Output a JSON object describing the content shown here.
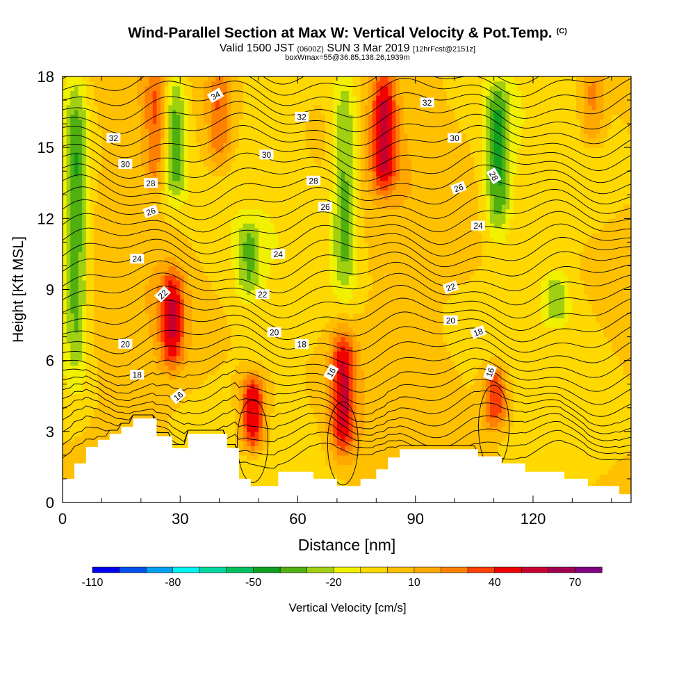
{
  "header": {
    "title": "Wind-Parallel Section at Max W: Vertical Velocity & Pot.Temp.",
    "copyright": "(C)",
    "valid_a": "Valid 1500 JST",
    "valid_z": "(0600Z)",
    "valid_b": "SUN 3 Mar 2019",
    "valid_fcst": "[12hrFcst@2151z]",
    "subtitle": "boxWmax=55@36.85,138.26,1939m"
  },
  "chart_data": {
    "type": "heatmap",
    "xlabel": "Distance [nm]",
    "ylabel": "Height [Kft MSL]",
    "xlim": [
      0,
      145
    ],
    "ylim": [
      0,
      18
    ],
    "x_ticks": [
      0,
      30,
      60,
      90,
      120
    ],
    "y_ticks": [
      0,
      3,
      6,
      9,
      12,
      15,
      18
    ],
    "colorbar": {
      "label": "Vertical Velocity [cm/s]",
      "tick_labels": [
        -110,
        -80,
        -50,
        -20,
        10,
        40,
        70
      ],
      "bounds": [
        -110,
        -100,
        -90,
        -80,
        -70,
        -60,
        -50,
        -40,
        -30,
        -20,
        -10,
        0,
        10,
        20,
        30,
        40,
        50,
        60,
        70,
        80
      ],
      "colors": [
        "#0000f0",
        "#0050f0",
        "#00a0f0",
        "#00f0f0",
        "#00d8a0",
        "#00c060",
        "#10a020",
        "#50b010",
        "#a0d010",
        "#f0f000",
        "#ffd800",
        "#ffc000",
        "#ffa800",
        "#ff8000",
        "#ff4000",
        "#f00000",
        "#c80030",
        "#a00050",
        "#800080"
      ]
    },
    "field": {
      "background_wcms": 0,
      "features": [
        {
          "type": "updraft",
          "x": 24,
          "y_range": [
            13,
            18.5
          ],
          "w_max": 30
        },
        {
          "type": "downdraft",
          "x": 28.5,
          "y_range": [
            12.5,
            18.5
          ],
          "w_min": -40
        },
        {
          "type": "updraft",
          "x": 40,
          "y_range": [
            14,
            18.5
          ],
          "w_max": 30
        },
        {
          "type": "updraft",
          "x": 28,
          "y_range": [
            5.5,
            10
          ],
          "w_max": 45
        },
        {
          "type": "downdraft",
          "x": 3.5,
          "y_range": [
            5,
            18.5
          ],
          "w_min": -40
        },
        {
          "type": "downdraft",
          "x": 47.5,
          "y_range": [
            8.5,
            12
          ],
          "w_min": -25
        },
        {
          "type": "updraft",
          "x": 48.5,
          "y_range": [
            2,
            5.5
          ],
          "w_max": 55
        },
        {
          "type": "updraft",
          "x": 71.5,
          "y_range": [
            1.8,
            7.5
          ],
          "w_max": 50
        },
        {
          "type": "downdraft",
          "x": 72,
          "y_range": [
            8.5,
            18.5
          ],
          "w_min": -35
        },
        {
          "type": "updraft",
          "x": 82,
          "y_range": [
            13,
            18.5
          ],
          "w_max": 50
        },
        {
          "type": "updraft",
          "x": 110.5,
          "y_range": [
            3,
            6
          ],
          "w_max": 40
        },
        {
          "type": "downdraft",
          "x": 111,
          "y_range": [
            11,
            18
          ],
          "w_min": -40
        },
        {
          "type": "downdraft",
          "x": 126,
          "y_range": [
            7.5,
            9.8
          ],
          "w_min": -25
        },
        {
          "type": "updraft",
          "x": 135,
          "y_range": [
            15,
            18.5
          ],
          "w_max": 25
        }
      ]
    },
    "terrain_kft": [
      [
        0,
        1.0
      ],
      [
        3,
        1.0
      ],
      [
        3,
        1.65
      ],
      [
        6,
        1.65
      ],
      [
        6,
        2.35
      ],
      [
        9,
        2.35
      ],
      [
        9,
        2.65
      ],
      [
        12,
        2.65
      ],
      [
        12,
        2.9
      ],
      [
        15,
        2.9
      ],
      [
        15,
        3.2
      ],
      [
        18,
        3.2
      ],
      [
        18,
        3.55
      ],
      [
        24,
        3.55
      ],
      [
        24,
        2.8
      ],
      [
        28,
        2.8
      ],
      [
        28,
        2.3
      ],
      [
        32,
        2.3
      ],
      [
        32,
        2.9
      ],
      [
        42,
        2.9
      ],
      [
        42,
        2.3
      ],
      [
        45,
        2.3
      ],
      [
        45,
        1.0
      ],
      [
        48,
        1.0
      ],
      [
        48,
        0.7
      ],
      [
        52,
        0.7
      ],
      [
        52,
        0.7
      ],
      [
        55,
        0.7
      ],
      [
        55,
        1.3
      ],
      [
        64,
        1.3
      ],
      [
        64,
        1.0
      ],
      [
        70,
        1.0
      ],
      [
        70,
        0.7
      ],
      [
        76,
        0.7
      ],
      [
        76,
        1.0
      ],
      [
        80,
        1.0
      ],
      [
        80,
        1.4
      ],
      [
        83,
        1.4
      ],
      [
        83,
        1.9
      ],
      [
        86,
        1.9
      ],
      [
        86,
        2.25
      ],
      [
        106,
        2.25
      ],
      [
        106,
        1.95
      ],
      [
        112,
        1.95
      ],
      [
        112,
        1.65
      ],
      [
        118,
        1.65
      ],
      [
        118,
        1.3
      ],
      [
        128,
        1.3
      ],
      [
        128,
        1.0
      ],
      [
        134,
        1.0
      ],
      [
        134,
        0.7
      ],
      [
        142,
        0.7
      ],
      [
        142,
        0.35
      ],
      [
        145,
        0.35
      ]
    ],
    "isentropes": {
      "levels": [
        16,
        18,
        20,
        22,
        24,
        26,
        28,
        30,
        32,
        34
      ],
      "labels": [
        {
          "text": "34",
          "x": 39,
          "y": 17.2,
          "rot": -30
        },
        {
          "text": "32",
          "x": 13,
          "y": 15.4,
          "rot": 0
        },
        {
          "text": "32",
          "x": 61,
          "y": 16.3,
          "rot": 0
        },
        {
          "text": "32",
          "x": 93,
          "y": 16.9,
          "rot": 0
        },
        {
          "text": "30",
          "x": 16,
          "y": 14.3,
          "rot": 0
        },
        {
          "text": "30",
          "x": 52,
          "y": 14.7,
          "rot": 0
        },
        {
          "text": "30",
          "x": 100,
          "y": 15.4,
          "rot": 0
        },
        {
          "text": "28",
          "x": 22.5,
          "y": 13.5,
          "rot": 0
        },
        {
          "text": "28",
          "x": 64,
          "y": 13.6,
          "rot": 0
        },
        {
          "text": "28",
          "x": 110,
          "y": 13.8,
          "rot": 60
        },
        {
          "text": "26",
          "x": 22.5,
          "y": 12.3,
          "rot": -20
        },
        {
          "text": "26",
          "x": 67,
          "y": 12.5,
          "rot": 0
        },
        {
          "text": "26",
          "x": 101,
          "y": 13.3,
          "rot": -20
        },
        {
          "text": "24",
          "x": 19,
          "y": 10.3,
          "rot": 0
        },
        {
          "text": "24",
          "x": 55,
          "y": 10.5,
          "rot": 0
        },
        {
          "text": "24",
          "x": 106,
          "y": 11.7,
          "rot": 0
        },
        {
          "text": "22",
          "x": 25.5,
          "y": 8.8,
          "rot": -45
        },
        {
          "text": "22",
          "x": 51,
          "y": 8.8,
          "rot": 0
        },
        {
          "text": "22",
          "x": 99,
          "y": 9.1,
          "rot": -20
        },
        {
          "text": "20",
          "x": 16,
          "y": 6.7,
          "rot": 0
        },
        {
          "text": "20",
          "x": 54,
          "y": 7.2,
          "rot": 0
        },
        {
          "text": "20",
          "x": 99,
          "y": 7.7,
          "rot": 0
        },
        {
          "text": "18",
          "x": 19,
          "y": 5.4,
          "rot": 0
        },
        {
          "text": "18",
          "x": 61,
          "y": 6.7,
          "rot": 0
        },
        {
          "text": "18",
          "x": 106,
          "y": 7.2,
          "rot": -20
        },
        {
          "text": "16",
          "x": 29.5,
          "y": 4.5,
          "rot": -40
        },
        {
          "text": "16",
          "x": 68.5,
          "y": 5.5,
          "rot": -60
        },
        {
          "text": "16",
          "x": 109,
          "y": 5.5,
          "rot": -70
        }
      ]
    }
  }
}
